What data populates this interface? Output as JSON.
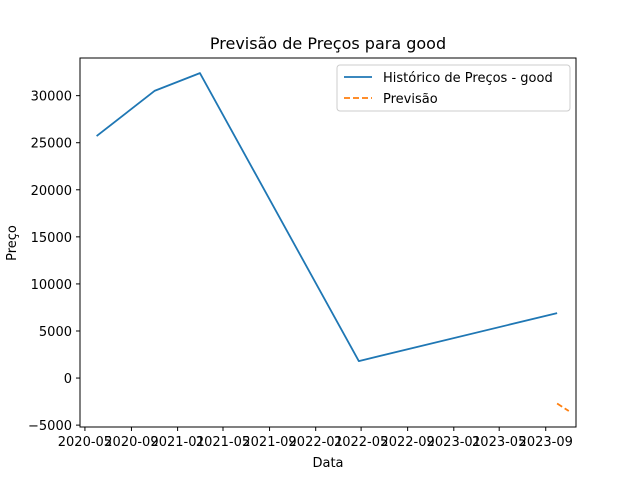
{
  "chart_data": {
    "type": "line",
    "title": "Previsão de Preços para good",
    "xlabel": "Data",
    "ylabel": "Preço",
    "xlim": [
      "2020-04-18",
      "2023-11-20"
    ],
    "ylim": [
      -5200,
      34000
    ],
    "grid": false,
    "legend_position": "top-right",
    "x_ticks": [
      {
        "date": "2020-05-01",
        "label": "2020-05"
      },
      {
        "date": "2020-09-01",
        "label": "2020-09"
      },
      {
        "date": "2021-01-01",
        "label": "2021-01"
      },
      {
        "date": "2021-05-01",
        "label": "2021-05"
      },
      {
        "date": "2021-09-01",
        "label": "2021-09"
      },
      {
        "date": "2022-01-01",
        "label": "2022-01"
      },
      {
        "date": "2022-05-01",
        "label": "2022-05"
      },
      {
        "date": "2022-09-01",
        "label": "2022-09"
      },
      {
        "date": "2023-01-01",
        "label": "2023-01"
      },
      {
        "date": "2023-05-01",
        "label": "2023-05"
      },
      {
        "date": "2023-09-01",
        "label": "2023-09"
      }
    ],
    "y_ticks": [
      -5000,
      0,
      5000,
      10000,
      15000,
      20000,
      25000,
      30000
    ],
    "series": [
      {
        "name": "Histórico de Preços - good",
        "color": "#1f77b4",
        "style": "solid",
        "points": [
          {
            "x": "2020-06-01",
            "y": 25700
          },
          {
            "x": "2020-11-01",
            "y": 30500
          },
          {
            "x": "2021-03-01",
            "y": 32400
          },
          {
            "x": "2022-04-25",
            "y": 1800
          },
          {
            "x": "2023-10-01",
            "y": 6900
          }
        ]
      },
      {
        "name": "Previsão",
        "color": "#ff7f0e",
        "style": "dashed",
        "points": [
          {
            "x": "2023-10-01",
            "y": -2700
          },
          {
            "x": "2023-11-01",
            "y": -3500
          }
        ]
      }
    ]
  }
}
